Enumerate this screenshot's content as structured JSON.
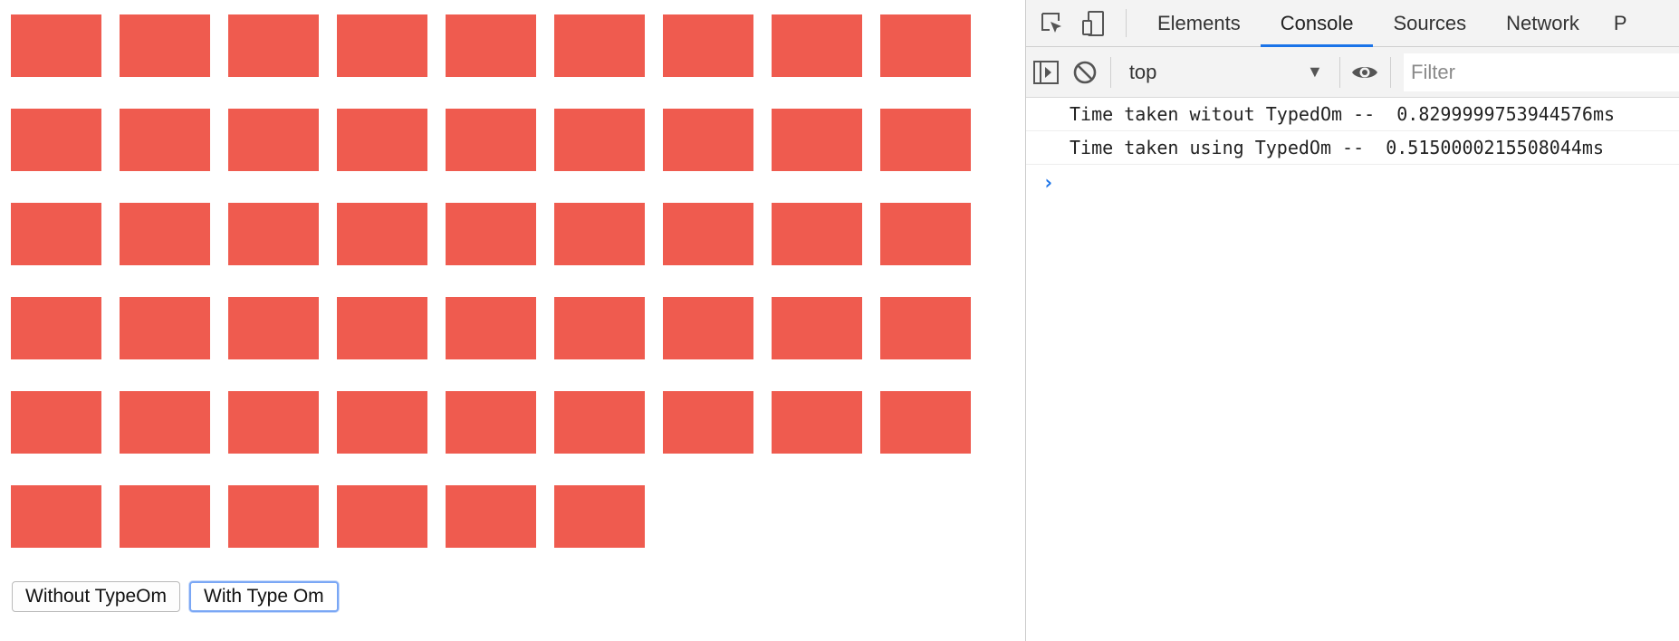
{
  "page": {
    "box_color": "#ef5b4f",
    "box_count": 51,
    "buttons": [
      {
        "label": "Without TypeOm",
        "focused": false
      },
      {
        "label": "With Type Om",
        "focused": true
      }
    ]
  },
  "devtools": {
    "toolbar_icons": [
      "inspect-element-icon",
      "device-toolbar-icon"
    ],
    "tabs": [
      "Elements",
      "Console",
      "Sources",
      "Network",
      "P"
    ],
    "active_tab": "Console",
    "accent_color": "#1a73e8",
    "console_bar": {
      "icons": [
        "sidebar-toggle-icon",
        "clear-console-icon",
        "live-expression-eye-icon"
      ],
      "context": "top",
      "context_arrow": "▼",
      "filter_placeholder": "Filter"
    },
    "logs": [
      "Time taken witout TypedOm --  0.8299999753944576ms",
      "Time taken using TypedOm --  0.5150000215508044ms"
    ],
    "prompt_symbol": "›"
  }
}
